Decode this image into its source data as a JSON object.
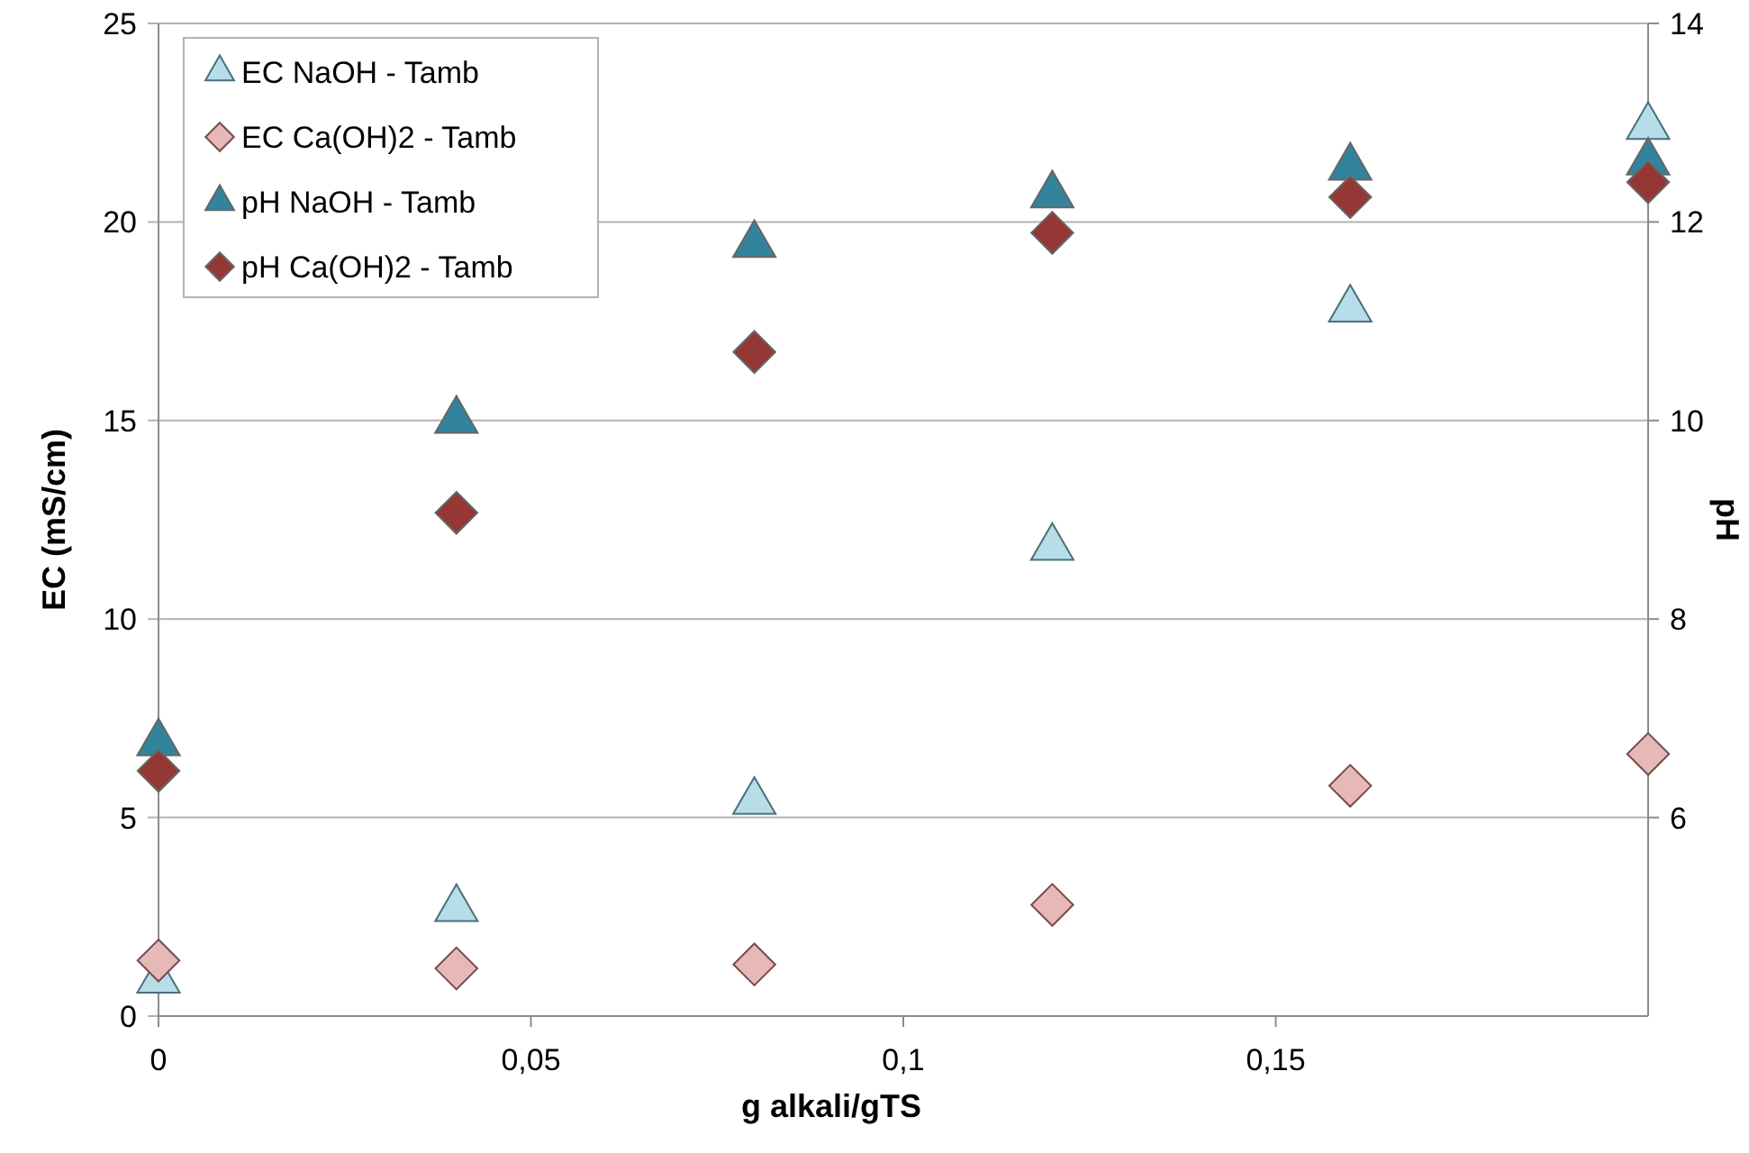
{
  "chart_data": {
    "type": "scatter",
    "xlabel": "g alkali/gTS",
    "ylabel": "EC (mS/cm)",
    "y2label": "pH",
    "x": [
      0,
      0.04,
      0.08,
      0.12,
      0.16,
      0.2
    ],
    "xlim": [
      0,
      0.2
    ],
    "xticks": [
      0,
      {
        "value": 0.05,
        "label": "0,05"
      },
      {
        "value": 0.1,
        "label": "0,1"
      },
      {
        "value": 0.15,
        "label": "0,15"
      }
    ],
    "ylim": [
      0,
      25
    ],
    "yticks": [
      0,
      5,
      10,
      15,
      20,
      25
    ],
    "y2lim": [
      4,
      14
    ],
    "y2ticks": [
      6,
      8,
      10,
      12,
      14
    ],
    "grid": "y",
    "legend": "top left",
    "series": [
      {
        "name": "EC NaOH - Tamb",
        "color": "#b7dee8",
        "marker": "triangle",
        "values": [
          0.9,
          2.7,
          5.4,
          11.8,
          17.8,
          22.4
        ]
      },
      {
        "name": "EC Ca(OH)2 - Tamb",
        "color": "#e6b9b8",
        "marker": "diamond",
        "values": [
          1.4,
          1.2,
          1.3,
          2.8,
          5.8,
          6.6
        ]
      },
      {
        "name": "pH NaOH - Tamb",
        "color": "#31849b",
        "marker": "triangle",
        "axis": "y2",
        "values": [
          6.75,
          10.0,
          11.77,
          12.27,
          12.55,
          12.6
        ]
      },
      {
        "name": "pH Ca(OH)2 - Tamb",
        "color": "#953735",
        "marker": "diamond",
        "axis": "y2",
        "values": [
          6.47,
          9.07,
          10.69,
          11.89,
          12.25,
          12.4
        ]
      }
    ]
  }
}
